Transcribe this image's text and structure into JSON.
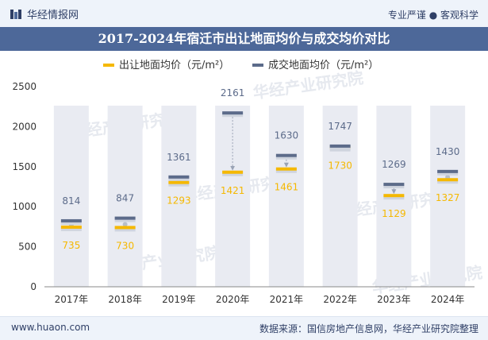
{
  "header": {
    "brand": "华经情报网",
    "slogan": "专业严谨 ● 客观科学"
  },
  "footer": {
    "website": "www.huaon.com",
    "source": "数据来源：国信房地产信息网，华经产业研究院整理"
  },
  "colors": {
    "supply": "#f5b800",
    "deal": "#5c6b8a",
    "band": "#e9ebf2",
    "title_band": "#4d6899"
  },
  "chart_data": {
    "type": "line",
    "title": "2017-2024年宿迁市出让地面均价与成交均价对比",
    "categories": [
      "2017年",
      "2018年",
      "2019年",
      "2020年",
      "2021年",
      "2022年",
      "2023年",
      "2024年"
    ],
    "series": [
      {
        "name": "出让地面均价（元/m²）",
        "values": [
          735,
          730,
          1293,
          1421,
          1461,
          1730,
          1129,
          1327
        ]
      },
      {
        "name": "成交地面均价（元/m²）",
        "values": [
          814,
          847,
          1361,
          2161,
          1630,
          1747,
          1269,
          1430
        ]
      }
    ],
    "yticks": [
      0,
      500,
      1000,
      1500,
      2000,
      2500
    ],
    "ylim": [
      0,
      2500
    ],
    "legend": "top-center",
    "watermark": "华经产业研究院"
  }
}
